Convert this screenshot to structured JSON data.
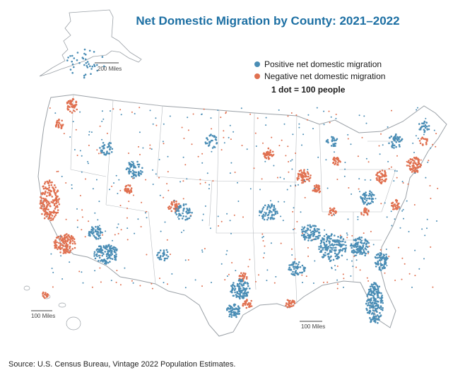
{
  "title": "Net Domestic Migration by County: 2021–2022",
  "legend": {
    "positive_label": "Positive net domestic migration",
    "negative_label": "Negative net domestic migration",
    "dot_note": "1 dot = 100 people"
  },
  "colors": {
    "positive": "#4a8db5",
    "negative": "#e07050",
    "title": "#1c6fa3",
    "boundary": "#9aa0a6"
  },
  "scales": {
    "alaska": "200 Miles",
    "hawaii": "100 Miles",
    "florida": "100 Miles"
  },
  "source": "Source: U.S. Census Bureau, Vintage 2022 Population Estimates."
}
